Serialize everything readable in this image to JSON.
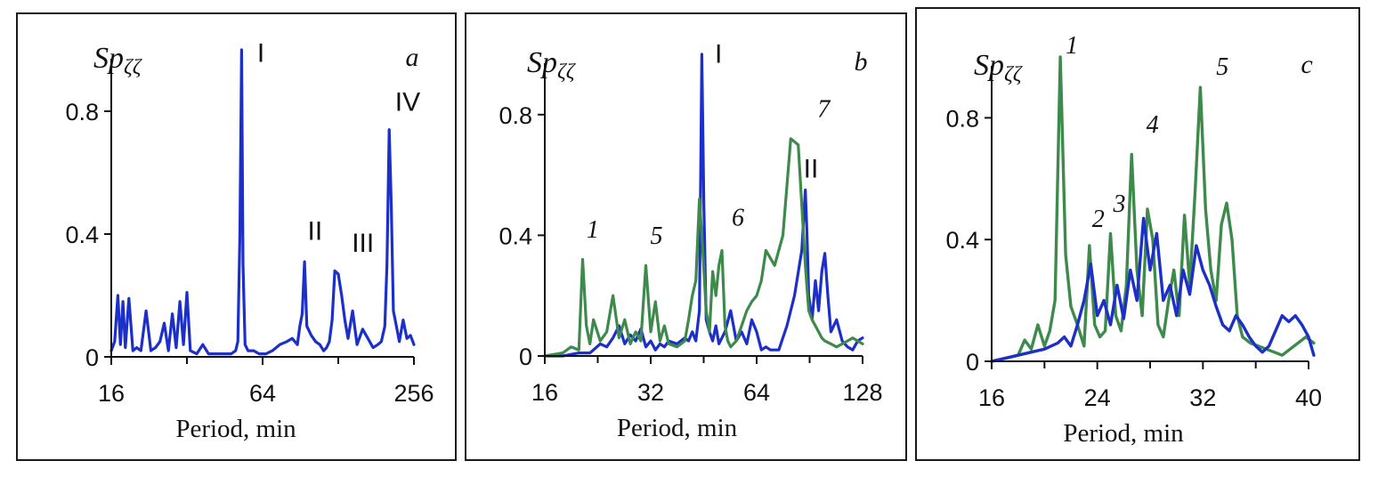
{
  "colors": {
    "blue": "#1c2fc9",
    "green": "#3e8a4c",
    "axis": "#111111"
  },
  "chart_data": [
    {
      "type": "line",
      "panel": "a",
      "title": "",
      "xlabel": "Period, min",
      "ylabel": "Sp",
      "ylabel_sub": "ζζ",
      "xscale": "log2",
      "xlim": [
        16,
        256
      ],
      "ylim": [
        0,
        1.0
      ],
      "xticks": [
        16,
        64,
        256
      ],
      "xtick_labels": [
        "16",
        "64",
        "256"
      ],
      "yticks": [
        0,
        0.4,
        0.8
      ],
      "ytick_labels": [
        "0",
        "0.4",
        "0.8"
      ],
      "series": [
        {
          "name": "blue",
          "color": "#1c2fc9",
          "x": [
            16,
            16.5,
            17,
            17.4,
            17.8,
            18.2,
            18.8,
            19.5,
            20.2,
            21,
            22,
            23,
            24,
            25,
            26,
            27,
            28,
            29,
            30,
            31,
            32,
            33,
            35,
            37,
            39,
            42,
            45,
            48,
            50,
            51,
            52,
            52.8,
            53.5,
            54.5,
            56,
            59,
            62,
            66,
            70,
            75,
            80,
            84,
            88,
            90,
            92,
            94,
            96,
            100,
            104,
            108,
            112,
            115,
            118,
            121,
            124,
            128,
            132,
            136,
            140,
            146,
            152,
            160,
            168,
            176,
            184,
            190,
            196,
            200,
            204,
            208,
            212,
            218,
            224,
            232,
            240,
            248,
            256
          ],
          "values": [
            0.02,
            0.05,
            0.2,
            0.04,
            0.18,
            0.03,
            0.19,
            0.02,
            0.03,
            0.02,
            0.15,
            0.02,
            0.03,
            0.05,
            0.11,
            0.02,
            0.14,
            0.03,
            0.18,
            0.04,
            0.21,
            0.02,
            0.01,
            0.04,
            0.01,
            0.01,
            0.01,
            0.01,
            0.02,
            0.05,
            0.4,
            1.0,
            0.3,
            0.04,
            0.02,
            0.02,
            0.01,
            0.01,
            0.02,
            0.04,
            0.05,
            0.06,
            0.04,
            0.1,
            0.14,
            0.31,
            0.1,
            0.07,
            0.05,
            0.04,
            0.02,
            0.03,
            0.05,
            0.12,
            0.28,
            0.27,
            0.2,
            0.12,
            0.06,
            0.15,
            0.04,
            0.09,
            0.06,
            0.03,
            0.04,
            0.05,
            0.1,
            0.3,
            0.74,
            0.5,
            0.15,
            0.1,
            0.05,
            0.12,
            0.06,
            0.07,
            0.04
          ]
        }
      ],
      "annotations": [
        {
          "text": "I",
          "x": 58,
          "y": 0.95,
          "style": "roman"
        },
        {
          "text": "II",
          "x": 92,
          "y": 0.37,
          "style": "roman"
        },
        {
          "text": "III",
          "x": 138,
          "y": 0.33,
          "style": "roman"
        },
        {
          "text": "IV",
          "x": 205,
          "y": 0.79,
          "style": "roman"
        }
      ],
      "panel_letter": "a"
    },
    {
      "type": "line",
      "panel": "b",
      "title": "",
      "xlabel": "Period, min",
      "ylabel": "Sp",
      "ylabel_sub": "ζζ",
      "xscale": "log2",
      "xlim": [
        16,
        128
      ],
      "ylim": [
        0,
        1.0
      ],
      "xticks": [
        16,
        32,
        64,
        128
      ],
      "xtick_labels": [
        "16",
        "32",
        "64",
        "128"
      ],
      "yticks": [
        0,
        0.4,
        0.8
      ],
      "ytick_labels": [
        "0",
        "0.4",
        "0.8"
      ],
      "series": [
        {
          "name": "blue",
          "color": "#1c2fc9",
          "x": [
            16,
            18,
            20,
            21.5,
            22,
            23,
            24,
            25,
            26,
            27,
            28,
            29,
            30,
            31,
            32,
            33,
            34,
            35,
            36,
            38,
            40,
            41,
            42,
            43,
            44,
            44.7,
            45.3,
            46,
            47,
            48,
            49,
            50,
            52,
            54,
            56,
            58,
            60,
            62,
            64,
            66,
            68,
            70,
            74,
            78,
            82,
            86,
            88,
            89,
            90,
            92,
            94,
            96,
            98,
            100,
            102,
            104,
            108,
            112,
            116,
            120,
            124,
            128
          ],
          "values": [
            0.0,
            0.0,
            0.01,
            0.01,
            0.02,
            0.04,
            0.03,
            0.06,
            0.1,
            0.04,
            0.07,
            0.05,
            0.09,
            0.03,
            0.05,
            0.02,
            0.04,
            0.03,
            0.05,
            0.04,
            0.06,
            0.05,
            0.08,
            0.05,
            0.15,
            1.0,
            0.5,
            0.12,
            0.08,
            0.05,
            0.1,
            0.04,
            0.08,
            0.15,
            0.05,
            0.08,
            0.04,
            0.12,
            0.08,
            0.02,
            0.03,
            0.02,
            0.02,
            0.1,
            0.2,
            0.35,
            0.55,
            0.4,
            0.2,
            0.12,
            0.25,
            0.15,
            0.28,
            0.34,
            0.2,
            0.08,
            0.12,
            0.05,
            0.03,
            0.02,
            0.05,
            0.06
          ]
        },
        {
          "name": "green",
          "color": "#3e8a4c",
          "x": [
            16,
            18,
            19,
            20,
            20.5,
            21,
            21.5,
            22,
            23,
            24,
            25,
            26,
            27,
            28,
            29,
            30,
            31,
            32,
            33,
            34,
            35,
            36,
            38,
            40,
            41,
            42,
            43,
            44,
            45,
            46,
            47,
            48,
            49,
            50,
            51,
            52,
            53,
            54,
            56,
            58,
            60,
            62,
            64,
            66,
            68,
            72,
            76,
            80,
            84,
            86,
            88,
            90,
            92,
            94,
            96,
            98,
            100,
            104,
            108,
            112,
            116,
            120,
            124,
            128
          ],
          "values": [
            0.0,
            0.01,
            0.03,
            0.02,
            0.32,
            0.1,
            0.04,
            0.12,
            0.05,
            0.08,
            0.2,
            0.06,
            0.12,
            0.04,
            0.08,
            0.05,
            0.3,
            0.08,
            0.18,
            0.05,
            0.1,
            0.04,
            0.03,
            0.05,
            0.12,
            0.2,
            0.25,
            0.52,
            0.35,
            0.15,
            0.08,
            0.28,
            0.2,
            0.3,
            0.35,
            0.1,
            0.05,
            0.03,
            0.05,
            0.1,
            0.15,
            0.18,
            0.2,
            0.25,
            0.35,
            0.3,
            0.4,
            0.72,
            0.7,
            0.5,
            0.3,
            0.15,
            0.12,
            0.1,
            0.08,
            0.06,
            0.05,
            0.04,
            0.03,
            0.04,
            0.05,
            0.06,
            0.05,
            0.04
          ]
        }
      ],
      "annotations": [
        {
          "text": "I",
          "x": 47,
          "y": 0.96,
          "style": "roman"
        },
        {
          "text": "II",
          "x": 84,
          "y": 0.58,
          "style": "roman"
        },
        {
          "text": "1",
          "x": 20.3,
          "y": 0.38,
          "style": "arabic"
        },
        {
          "text": "5",
          "x": 30.8,
          "y": 0.36,
          "style": "arabic"
        },
        {
          "text": "6",
          "x": 52.5,
          "y": 0.42,
          "style": "arabic"
        },
        {
          "text": "7",
          "x": 92,
          "y": 0.78,
          "style": "arabic"
        }
      ],
      "panel_letter": "b"
    },
    {
      "type": "line",
      "panel": "c",
      "title": "",
      "xlabel": "Period, min",
      "ylabel": "Sp",
      "ylabel_sub": "ζζ",
      "xscale": "linear",
      "xlim": [
        16,
        40
      ],
      "ylim": [
        0,
        1.0
      ],
      "xticks": [
        16,
        24,
        32,
        40
      ],
      "xtick_labels": [
        "16",
        "24",
        "32",
        "40"
      ],
      "yticks": [
        0,
        0.4,
        0.8
      ],
      "ytick_labels": [
        "0",
        "0.4",
        "0.8"
      ],
      "series": [
        {
          "name": "green",
          "color": "#3e8a4c",
          "x": [
            16,
            17,
            18,
            18.5,
            19,
            19.5,
            20,
            20.4,
            20.8,
            21.2,
            21.6,
            22,
            22.5,
            23,
            23.4,
            23.8,
            24.2,
            24.6,
            25,
            25.4,
            25.8,
            26.2,
            26.6,
            27,
            27.4,
            27.8,
            28.2,
            28.6,
            29,
            29.4,
            29.8,
            30.2,
            30.6,
            31,
            31.4,
            31.8,
            32.2,
            32.6,
            33,
            33.4,
            33.8,
            34.2,
            34.6,
            35,
            35.6,
            36.2,
            36.8,
            37.4,
            38,
            38.6,
            39.2,
            39.8,
            40.4
          ],
          "values": [
            0.0,
            0.01,
            0.02,
            0.07,
            0.04,
            0.12,
            0.05,
            0.1,
            0.2,
            1.0,
            0.35,
            0.18,
            0.12,
            0.05,
            0.38,
            0.12,
            0.08,
            0.1,
            0.42,
            0.15,
            0.1,
            0.25,
            0.68,
            0.3,
            0.15,
            0.5,
            0.4,
            0.12,
            0.08,
            0.2,
            0.3,
            0.15,
            0.48,
            0.25,
            0.55,
            0.9,
            0.5,
            0.3,
            0.2,
            0.45,
            0.52,
            0.4,
            0.15,
            0.08,
            0.06,
            0.05,
            0.04,
            0.03,
            0.02,
            0.04,
            0.06,
            0.08,
            0.06
          ]
        },
        {
          "name": "blue",
          "color": "#1c2fc9",
          "x": [
            16,
            17,
            18,
            19,
            20,
            21,
            21.5,
            22,
            22.5,
            23,
            23.5,
            24,
            24.5,
            25,
            25.5,
            26,
            26.5,
            27,
            27.5,
            28,
            28.5,
            29,
            29.5,
            30,
            30.5,
            31,
            31.5,
            32,
            32.5,
            33,
            33.5,
            34,
            34.5,
            35,
            35.5,
            36,
            36.5,
            37,
            37.5,
            38,
            38.5,
            39,
            39.5,
            40,
            40.4
          ],
          "values": [
            0.0,
            0.01,
            0.02,
            0.03,
            0.04,
            0.06,
            0.08,
            0.05,
            0.12,
            0.2,
            0.32,
            0.15,
            0.2,
            0.12,
            0.25,
            0.14,
            0.3,
            0.2,
            0.47,
            0.3,
            0.42,
            0.2,
            0.25,
            0.15,
            0.3,
            0.22,
            0.38,
            0.3,
            0.25,
            0.18,
            0.12,
            0.1,
            0.15,
            0.12,
            0.08,
            0.05,
            0.03,
            0.05,
            0.1,
            0.15,
            0.13,
            0.15,
            0.12,
            0.08,
            0.02
          ]
        }
      ],
      "annotations": [
        {
          "text": "1",
          "x": 21.2,
          "y": 1.0,
          "style": "arabic"
        },
        {
          "text": "2",
          "x": 23.2,
          "y": 0.43,
          "style": "arabic"
        },
        {
          "text": "3",
          "x": 24.8,
          "y": 0.48,
          "style": "arabic"
        },
        {
          "text": "4",
          "x": 27.3,
          "y": 0.74,
          "style": "arabic"
        },
        {
          "text": "5",
          "x": 32.6,
          "y": 0.93,
          "style": "arabic"
        }
      ],
      "panel_letter": "c"
    }
  ]
}
